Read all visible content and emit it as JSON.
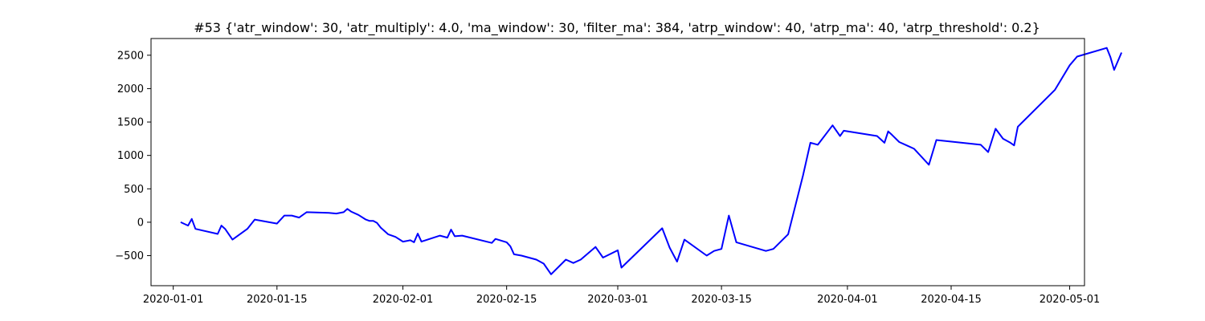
{
  "chart_data": {
    "type": "line",
    "title": "#53 {'atr_window': 30, 'atr_multiply': 4.0, 'ma_window': 30, 'filter_ma': 384, 'atrp_window': 40, 'atrp_ma': 40, 'atrp_threshold': 0.2}",
    "xlabel": "",
    "ylabel": "",
    "xlim": [
      "2019-12-29",
      "2020-05-03"
    ],
    "ylim": [
      -950,
      2750
    ],
    "x_ticks": [
      "2020-01-01",
      "2020-01-15",
      "2020-02-01",
      "2020-02-15",
      "2020-03-01",
      "2020-03-15",
      "2020-04-01",
      "2020-04-15",
      "2020-05-01"
    ],
    "y_ticks": [
      -500,
      0,
      500,
      1000,
      1500,
      2000,
      2500
    ],
    "grid": false,
    "series": [
      {
        "color": "#0000ff",
        "points": [
          [
            "2020-01-02",
            0
          ],
          [
            "2020-01-03",
            -50
          ],
          [
            "2020-01-03 12:00",
            50
          ],
          [
            "2020-01-04",
            -100
          ],
          [
            "2020-01-07",
            -175
          ],
          [
            "2020-01-07 12:00",
            -50
          ],
          [
            "2020-01-08",
            -100
          ],
          [
            "2020-01-09",
            -260
          ],
          [
            "2020-01-11",
            -100
          ],
          [
            "2020-01-12",
            40
          ],
          [
            "2020-01-15",
            -20
          ],
          [
            "2020-01-16",
            100
          ],
          [
            "2020-01-17",
            100
          ],
          [
            "2020-01-18",
            70
          ],
          [
            "2020-01-19",
            150
          ],
          [
            "2020-01-22",
            140
          ],
          [
            "2020-01-23",
            130
          ],
          [
            "2020-01-24",
            150
          ],
          [
            "2020-01-24 12:00",
            200
          ],
          [
            "2020-01-25",
            160
          ],
          [
            "2020-01-26",
            110
          ],
          [
            "2020-01-27",
            40
          ],
          [
            "2020-01-27 12:00",
            20
          ],
          [
            "2020-01-28",
            20
          ],
          [
            "2020-01-28 12:00",
            -10
          ],
          [
            "2020-01-29",
            -80
          ],
          [
            "2020-01-30",
            -180
          ],
          [
            "2020-01-31",
            -220
          ],
          [
            "2020-02-01",
            -290
          ],
          [
            "2020-02-02",
            -270
          ],
          [
            "2020-02-02 12:00",
            -300
          ],
          [
            "2020-02-03",
            -170
          ],
          [
            "2020-02-03 12:00",
            -290
          ],
          [
            "2020-02-06",
            -200
          ],
          [
            "2020-02-07",
            -230
          ],
          [
            "2020-02-07 12:00",
            -110
          ],
          [
            "2020-02-08",
            -210
          ],
          [
            "2020-02-09",
            -200
          ],
          [
            "2020-02-13",
            -310
          ],
          [
            "2020-02-13 12:00",
            -250
          ],
          [
            "2020-02-15",
            -300
          ],
          [
            "2020-02-15 12:00",
            -360
          ],
          [
            "2020-02-16",
            -480
          ],
          [
            "2020-02-17",
            -500
          ],
          [
            "2020-02-19",
            -560
          ],
          [
            "2020-02-20",
            -620
          ],
          [
            "2020-02-21",
            -780
          ],
          [
            "2020-02-23",
            -560
          ],
          [
            "2020-02-24",
            -610
          ],
          [
            "2020-02-25",
            -560
          ],
          [
            "2020-02-27",
            -370
          ],
          [
            "2020-02-28",
            -530
          ],
          [
            "2020-03-01",
            -420
          ],
          [
            "2020-03-01 12:00",
            -680
          ],
          [
            "2020-03-07",
            -90
          ],
          [
            "2020-03-08",
            -380
          ],
          [
            "2020-03-09",
            -590
          ],
          [
            "2020-03-10",
            -260
          ],
          [
            "2020-03-13",
            -500
          ],
          [
            "2020-03-14",
            -430
          ],
          [
            "2020-03-15",
            -400
          ],
          [
            "2020-03-16",
            100
          ],
          [
            "2020-03-17",
            -300
          ],
          [
            "2020-03-21",
            -430
          ],
          [
            "2020-03-22",
            -400
          ],
          [
            "2020-03-24",
            -180
          ],
          [
            "2020-03-26",
            700
          ],
          [
            "2020-03-27",
            1190
          ],
          [
            "2020-03-28",
            1160
          ],
          [
            "2020-03-30",
            1450
          ],
          [
            "2020-03-31",
            1290
          ],
          [
            "2020-03-31 12:00",
            1370
          ],
          [
            "2020-04-05",
            1290
          ],
          [
            "2020-04-06",
            1190
          ],
          [
            "2020-04-06 12:00",
            1360
          ],
          [
            "2020-04-07",
            1310
          ],
          [
            "2020-04-08",
            1200
          ],
          [
            "2020-04-09",
            1150
          ],
          [
            "2020-04-10",
            1100
          ],
          [
            "2020-04-12",
            860
          ],
          [
            "2020-04-13",
            1230
          ],
          [
            "2020-04-19",
            1160
          ],
          [
            "2020-04-20",
            1050
          ],
          [
            "2020-04-21",
            1400
          ],
          [
            "2020-04-22",
            1250
          ],
          [
            "2020-04-23",
            1190
          ],
          [
            "2020-04-23 12:00",
            1150
          ],
          [
            "2020-04-24",
            1430
          ],
          [
            "2020-04-29",
            1980
          ],
          [
            "2020-05-01",
            2350
          ],
          [
            "2020-05-02",
            2480
          ],
          [
            "2020-05-06",
            2610
          ],
          [
            "2020-05-06 12:00",
            2470
          ],
          [
            "2020-05-07",
            2280
          ],
          [
            "2020-05-08",
            2540
          ]
        ]
      }
    ]
  }
}
